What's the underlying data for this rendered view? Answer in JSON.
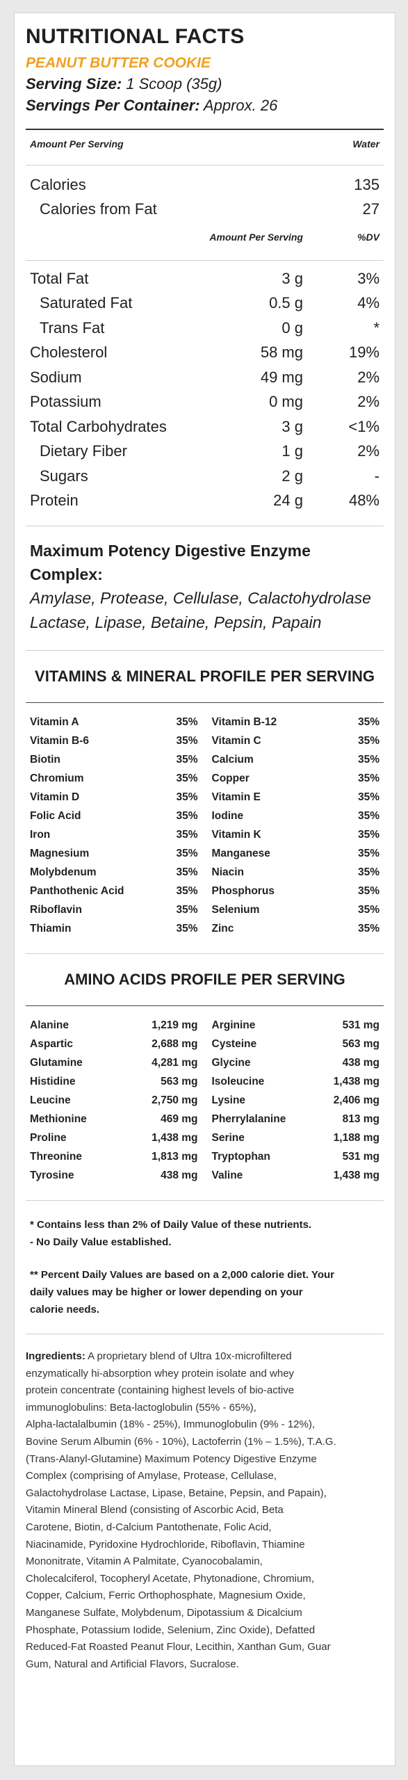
{
  "title": "NUTRITIONAL FACTS",
  "flavor": "PEANUT BUTTER COOKIE",
  "serving_size_label": "Serving Size:",
  "serving_size_value": " 1 Scoop (35g)",
  "servings_per_container_label": "Servings Per Container:",
  "servings_per_container_value": " Approx. 26",
  "header": {
    "amount_per_serving": "Amount Per Serving",
    "water": "Water"
  },
  "calories": {
    "label": "Calories",
    "value": "135"
  },
  "calories_from_fat": {
    "label": "Calories from Fat",
    "value": "27"
  },
  "subheader": {
    "amount_per_serving": "Amount Per Serving",
    "dv": "%DV"
  },
  "nutrients": [
    {
      "name": "Total Fat",
      "amount": "3 g",
      "dv": "3%"
    },
    {
      "name": "Saturated Fat",
      "amount": "0.5 g",
      "dv": "4%"
    },
    {
      "name": "Trans Fat",
      "amount": "0 g",
      "dv": "*"
    },
    {
      "name": "Cholesterol",
      "amount": "58 mg",
      "dv": "19%"
    },
    {
      "name": "Sodium",
      "amount": "49 mg",
      "dv": "2%"
    },
    {
      "name": "Potassium",
      "amount": "0 mg",
      "dv": "2%"
    },
    {
      "name": "Total Carbohydrates",
      "amount": "3 g",
      "dv": "<1%"
    },
    {
      "name": "Dietary Fiber",
      "amount": "1 g",
      "dv": "2%"
    },
    {
      "name": "Sugars",
      "amount": "2 g",
      "dv": "-"
    },
    {
      "name": "Protein",
      "amount": "24 g",
      "dv": "48%"
    }
  ],
  "enzyme": {
    "title": "Maximum Potency Digestive Enzyme Complex:",
    "line1": "Amylase, Protease, Cellulase, Calactohydrolase",
    "line2": "Lactase, Lipase, Betaine, Pepsin, Papain"
  },
  "vitamins": {
    "title": "VITAMINS & MINERAL PROFILE PER SERVING",
    "left": [
      {
        "name": "Vitamin A",
        "value": "35%"
      },
      {
        "name": "Vitamin B-6",
        "value": "35%"
      },
      {
        "name": "Biotin",
        "value": "35%"
      },
      {
        "name": "Chromium",
        "value": "35%"
      },
      {
        "name": "Vitamin D",
        "value": "35%"
      },
      {
        "name": "Folic Acid",
        "value": "35%"
      },
      {
        "name": "Iron",
        "value": "35%"
      },
      {
        "name": "Magnesium",
        "value": "35%"
      },
      {
        "name": "Molybdenum",
        "value": "35%"
      },
      {
        "name": "Panthothenic Acid",
        "value": "35%"
      },
      {
        "name": "Riboflavin",
        "value": "35%"
      },
      {
        "name": "Thiamin",
        "value": "35%"
      }
    ],
    "right": [
      {
        "name": "Vitamin B-12",
        "value": "35%"
      },
      {
        "name": "Vitamin C",
        "value": "35%"
      },
      {
        "name": "Calcium",
        "value": "35%"
      },
      {
        "name": "Copper",
        "value": "35%"
      },
      {
        "name": "Vitamin E",
        "value": "35%"
      },
      {
        "name": "Iodine",
        "value": "35%"
      },
      {
        "name": "Vitamin K",
        "value": "35%"
      },
      {
        "name": "Manganese",
        "value": "35%"
      },
      {
        "name": "Niacin",
        "value": "35%"
      },
      {
        "name": "Phosphorus",
        "value": "35%"
      },
      {
        "name": "Selenium",
        "value": "35%"
      },
      {
        "name": "Zinc",
        "value": "35%"
      }
    ]
  },
  "amino": {
    "title": "AMINO ACIDS PROFILE PER SERVING",
    "left": [
      {
        "name": "Alanine",
        "value": "1,219 mg"
      },
      {
        "name": "Aspartic",
        "value": "2,688 mg"
      },
      {
        "name": "Glutamine",
        "value": "4,281 mg"
      },
      {
        "name": "Histidine",
        "value": "563 mg"
      },
      {
        "name": "Leucine",
        "value": "2,750 mg"
      },
      {
        "name": "Methionine",
        "value": "469 mg"
      },
      {
        "name": "Proline",
        "value": "1,438 mg"
      },
      {
        "name": "Threonine",
        "value": "1,813 mg"
      },
      {
        "name": "Tyrosine",
        "value": "438 mg"
      }
    ],
    "right": [
      {
        "name": "Arginine",
        "value": "531 mg"
      },
      {
        "name": "Cysteine",
        "value": "563 mg"
      },
      {
        "name": "Glycine",
        "value": "438 mg"
      },
      {
        "name": "Isoleucine",
        "value": "1,438 mg"
      },
      {
        "name": "Lysine",
        "value": "2,406 mg"
      },
      {
        "name": "Pherrylalanine",
        "value": "813 mg"
      },
      {
        "name": "Serine",
        "value": "1,188 mg"
      },
      {
        "name": "Tryptophan",
        "value": "531 mg"
      },
      {
        "name": "Valine",
        "value": "1,438 mg"
      }
    ]
  },
  "notes": {
    "line1": "* Contains less than 2% of Daily Value of these nutrients.",
    "line2": "- No Daily Value established.",
    "line3": "** Percent Daily Values are based on a 2,000 calorie diet. Your",
    "line4": "daily values may be higher or lower depending on your",
    "line5": "calorie needs."
  },
  "ingredients": {
    "label": "Ingredients:",
    "lines": [
      " A proprietary blend of Ultra 10x-microfiltered",
      "enzymatically hi-absorption whey protein isolate and whey",
      "protein concentrate (containing highest levels of bio-active",
      "immunoglobulins: Beta-lactoglobulin (55% - 65%),",
      "Alpha-lactalalbumin (18% - 25%), Immunoglobulin (9% - 12%),",
      "Bovine Serum Albumin (6% - 10%), Lactoferrin (1% – 1.5%), T.A.G.",
      "(Trans-Alanyl-Glutamine) Maximum Potency Digestive Enzyme",
      "Complex (comprising of Amylase, Protease, Cellulase,",
      "Galactohydrolase Lactase, Lipase, Betaine, Pepsin, and Papain),",
      "Vitamin Mineral Blend (consisting of Ascorbic Acid, Beta",
      "Carotene, Biotin, d-Calcium Pantothenate, Folic Acid,",
      "Niacinamide, Pyridoxine Hydrochloride, Riboflavin, Thiamine",
      "Mononitrate, Vitamin A Palmitate, Cyanocobalamin,",
      "Cholecalciferol, Tocopheryl Acetate, Phytonadione, Chromium,",
      "Copper, Calcium, Ferric Orthophosphate, Magnesium Oxide,",
      "Manganese Sulfate, Molybdenum, Dipotassium & Dicalcium",
      "Phosphate, Potassium Iodide, Selenium, Zinc Oxide), Defatted",
      "Reduced-Fat Roasted Peanut Flour, Lecithin, Xanthan Gum, Guar",
      "Gum, Natural and Artificial Flavors, Sucralose."
    ]
  },
  "colors": {
    "flavor": "#f0a021",
    "background": "#e9e9e9",
    "panel": "#ffffff"
  }
}
